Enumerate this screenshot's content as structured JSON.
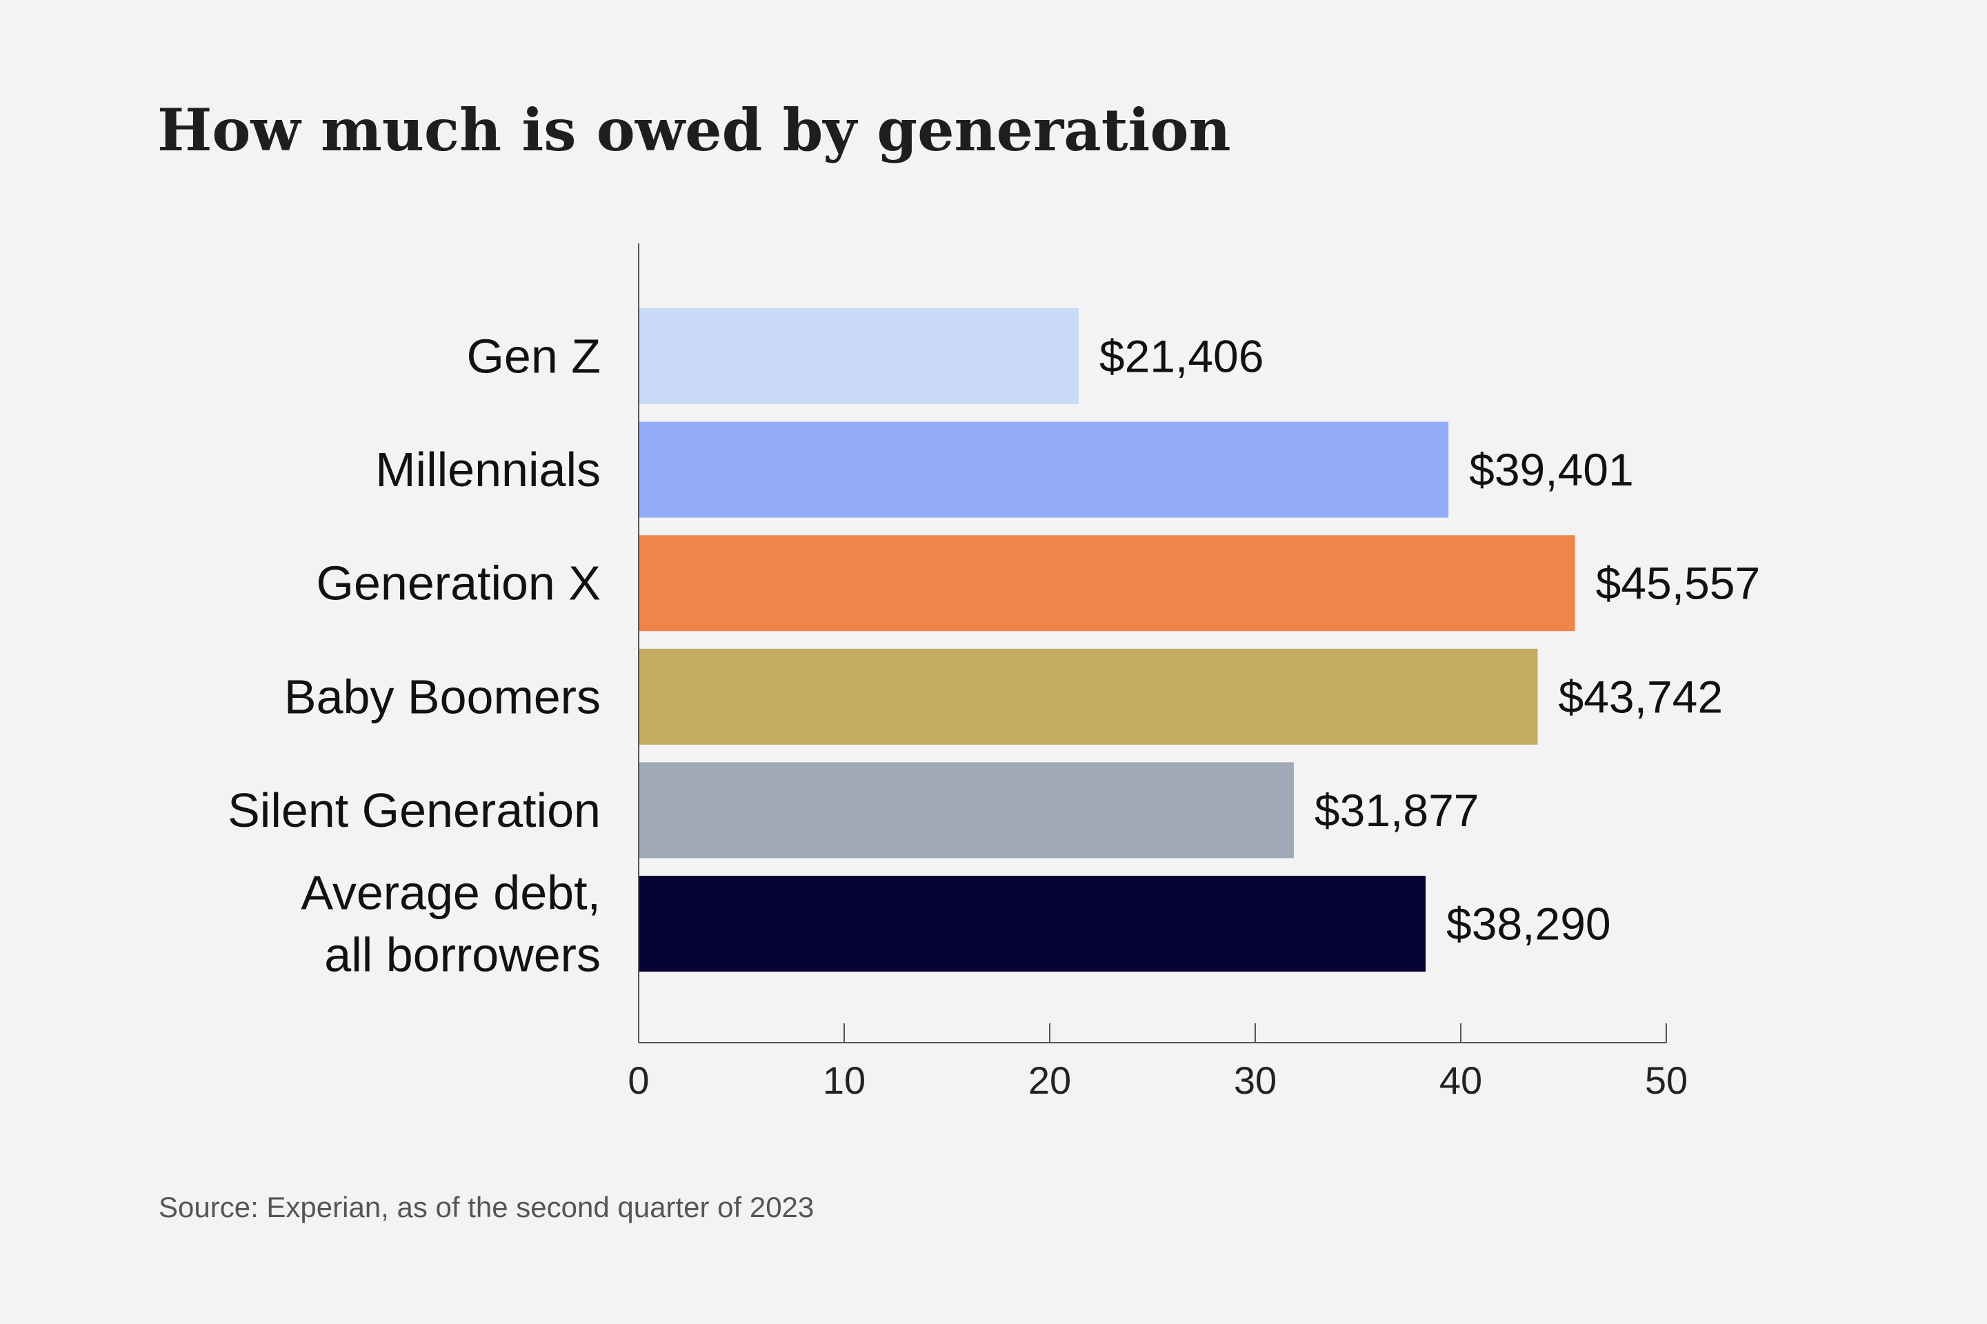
{
  "chart_data": {
    "type": "bar",
    "orientation": "horizontal",
    "title": "How much is owed by generation",
    "categories": [
      [
        "Gen Z"
      ],
      [
        "Millennials"
      ],
      [
        "Generation X"
      ],
      [
        "Baby Boomers"
      ],
      [
        "Silent Generation"
      ],
      [
        "Average debt,",
        "all borrowers"
      ]
    ],
    "values": [
      21406,
      39401,
      45557,
      43742,
      31877,
      38290
    ],
    "value_labels": [
      "$21,406",
      "$39,401",
      "$45,557",
      "$43,742",
      "$31,877",
      "$38,290"
    ],
    "colors": [
      "#c9daf8",
      "#93acf7",
      "#ef8548",
      "#c4ab62",
      "#9faab6",
      "#060333"
    ],
    "xlim": [
      0,
      50
    ],
    "x_ticks": [
      "0",
      "10",
      "20",
      "30",
      "40",
      "50"
    ],
    "xlabel": "",
    "ylabel": "",
    "grid": false,
    "source": "Source: Experian, as of the second quarter of 2023"
  }
}
